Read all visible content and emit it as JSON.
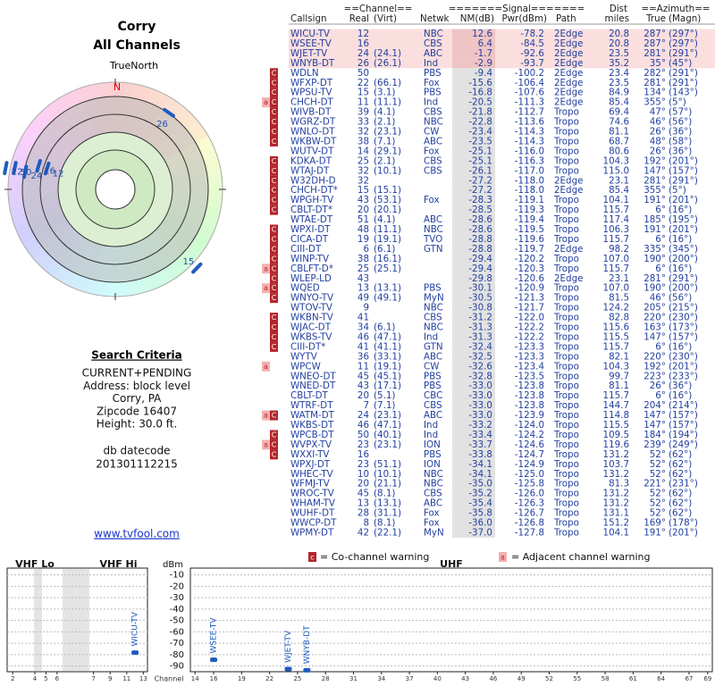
{
  "header": {
    "title": "Corry",
    "subtitle": "All Channels"
  },
  "polar": {
    "north_caption": "TrueNorth",
    "north_letter": "N",
    "marks": [
      {
        "label": "12",
        "azimuth": 287,
        "nm": 12.6
      },
      {
        "label": "16",
        "azimuth": 287,
        "nm": 6.4
      },
      {
        "label": "24",
        "azimuth": 281,
        "nm": -1.7
      },
      {
        "label": "26",
        "azimuth": 35,
        "nm": -2.9
      },
      {
        "label": "50",
        "azimuth": 282,
        "nm": -9.4
      },
      {
        "label": "15",
        "azimuth": 134,
        "nm": -16.8
      },
      {
        "label": "22",
        "azimuth": 281,
        "nm": -15.6
      }
    ]
  },
  "criteria": {
    "heading": "Search Criteria",
    "lines": [
      "CURRENT+PENDING",
      "Address: block level",
      "Corry, PA",
      "Zipcode 16407",
      "Height: 30.0 ft."
    ],
    "datecode": [
      "db datecode",
      "201301112215"
    ],
    "link": "www.tvfool.com"
  },
  "table": {
    "header_top": [
      "==Channel==",
      "=======Signal=======",
      "Dist",
      "==Azimuth=="
    ],
    "header": [
      "Callsign",
      "Real",
      "(Virt)",
      "Netwk",
      "NM(dB)",
      "Pwr(dBm)",
      "Path",
      "miles",
      "True",
      "(Magn)"
    ],
    "rows": [
      {
        "highlight": true,
        "callsign": "WICU-TV",
        "real": "12",
        "netwk": "NBC",
        "nm": "12.6",
        "pwr": "-78.2",
        "path": "2Edge",
        "dist": "20.8",
        "az_true": "287°",
        "az_magn": "(297°)"
      },
      {
        "highlight": true,
        "callsign": "WSEE-TV",
        "real": "16",
        "netwk": "CBS",
        "nm": "6.4",
        "pwr": "-84.5",
        "path": "2Edge",
        "dist": "20.8",
        "az_true": "287°",
        "az_magn": "(297°)"
      },
      {
        "highlight": true,
        "callsign": "WJET-TV",
        "real": "24",
        "virt": "(24.1)",
        "netwk": "ABC",
        "nm": "-1.7",
        "pwr": "-92.6",
        "path": "2Edge",
        "dist": "23.5",
        "az_true": "281°",
        "az_magn": "(291°)"
      },
      {
        "highlight": true,
        "callsign": "WNYB-DT",
        "real": "26",
        "virt": "(26.1)",
        "netwk": "Ind",
        "nm": "-2.9",
        "pwr": "-93.7",
        "path": "2Edge",
        "dist": "35.2",
        "az_true": "35°",
        "az_magn": "(45°)"
      },
      {
        "warn": [
          "C"
        ],
        "callsign": "WDLN",
        "real": "50",
        "netwk": "PBS",
        "nm": "-9.4",
        "pwr": "-100.2",
        "path": "2Edge",
        "dist": "23.4",
        "az_true": "282°",
        "az_magn": "(291°)"
      },
      {
        "warn": [
          "C"
        ],
        "callsign": "WFXP-DT",
        "real": "22",
        "virt": "(66.1)",
        "netwk": "Fox",
        "nm": "-15.6",
        "pwr": "-106.4",
        "path": "2Edge",
        "dist": "23.5",
        "az_true": "281°",
        "az_magn": "(291°)"
      },
      {
        "warn": [
          "C"
        ],
        "callsign": "WPSU-TV",
        "real": "15",
        "virt": "(3.1)",
        "netwk": "PBS",
        "nm": "-16.8",
        "pwr": "-107.6",
        "path": "2Edge",
        "dist": "84.9",
        "az_true": "134°",
        "az_magn": "(143°)"
      },
      {
        "warn": [
          "a",
          "C"
        ],
        "callsign": "CHCH-DT",
        "real": "11",
        "virt": "(11.1)",
        "netwk": "Ind",
        "nm": "-20.5",
        "pwr": "-111.3",
        "path": "2Edge",
        "dist": "85.4",
        "az_true": "355°",
        "az_magn": "(5°)"
      },
      {
        "warn": [
          "C"
        ],
        "callsign": "WIVB-DT",
        "real": "39",
        "virt": "(4.1)",
        "netwk": "CBS",
        "nm": "-21.8",
        "pwr": "-112.7",
        "path": "Tropo",
        "dist": "69.4",
        "az_true": "47°",
        "az_magn": "(57°)"
      },
      {
        "warn": [
          "C"
        ],
        "callsign": "WGRZ-DT",
        "real": "33",
        "virt": "(2.1)",
        "netwk": "NBC",
        "nm": "-22.8",
        "pwr": "-113.6",
        "path": "Tropo",
        "dist": "74.6",
        "az_true": "46°",
        "az_magn": "(56°)"
      },
      {
        "warn": [
          "C"
        ],
        "callsign": "WNLO-DT",
        "real": "32",
        "virt": "(23.1)",
        "netwk": "CW",
        "nm": "-23.4",
        "pwr": "-114.3",
        "path": "Tropo",
        "dist": "81.1",
        "az_true": "26°",
        "az_magn": "(36°)"
      },
      {
        "warn": [
          "C"
        ],
        "callsign": "WKBW-DT",
        "real": "38",
        "virt": "(7.1)",
        "netwk": "ABC",
        "nm": "-23.5",
        "pwr": "-114.3",
        "path": "Tropo",
        "dist": "68.7",
        "az_true": "48°",
        "az_magn": "(58°)"
      },
      {
        "callsign": "WUTV-DT",
        "real": "14",
        "virt": "(29.1)",
        "netwk": "Fox",
        "nm": "-25.1",
        "pwr": "-116.0",
        "path": "Tropo",
        "dist": "80.6",
        "az_true": "26°",
        "az_magn": "(36°)"
      },
      {
        "warn": [
          "C"
        ],
        "callsign": "KDKA-DT",
        "real": "25",
        "virt": "(2.1)",
        "netwk": "CBS",
        "nm": "-25.1",
        "pwr": "-116.3",
        "path": "Tropo",
        "dist": "104.3",
        "az_true": "192°",
        "az_magn": "(201°)"
      },
      {
        "warn": [
          "C"
        ],
        "callsign": "WTAJ-DT",
        "real": "32",
        "virt": "(10.1)",
        "netwk": "CBS",
        "nm": "-26.1",
        "pwr": "-117.0",
        "path": "Tropo",
        "dist": "115.0",
        "az_true": "147°",
        "az_magn": "(157°)"
      },
      {
        "warn": [
          "C"
        ],
        "callsign": "W32DH-D",
        "real": "32",
        "nm": "-27.2",
        "pwr": "-118.0",
        "path": "2Edge",
        "dist": "23.1",
        "az_true": "281°",
        "az_magn": "(291°)"
      },
      {
        "warn": [
          "C"
        ],
        "callsign": "CHCH-DT*",
        "real": "15",
        "virt": "(15.1)",
        "nm": "-27.2",
        "pwr": "-118.0",
        "path": "2Edge",
        "dist": "85.4",
        "az_true": "355°",
        "az_magn": "(5°)"
      },
      {
        "warn": [
          "C"
        ],
        "callsign": "WPGH-TV",
        "real": "43",
        "virt": "(53.1)",
        "netwk": "Fox",
        "nm": "-28.3",
        "pwr": "-119.1",
        "path": "Tropo",
        "dist": "104.1",
        "az_true": "191°",
        "az_magn": "(201°)"
      },
      {
        "warn": [
          "C"
        ],
        "callsign": "CBLT-DT*",
        "real": "20",
        "virt": "(20.1)",
        "nm": "-28.5",
        "pwr": "-119.3",
        "path": "Tropo",
        "dist": "115.7",
        "az_true": "6°",
        "az_magn": "(16°)"
      },
      {
        "callsign": "WTAE-DT",
        "real": "51",
        "virt": "(4.1)",
        "netwk": "ABC",
        "nm": "-28.6",
        "pwr": "-119.4",
        "path": "Tropo",
        "dist": "117.4",
        "az_true": "185°",
        "az_magn": "(195°)"
      },
      {
        "warn": [
          "C"
        ],
        "callsign": "WPXI-DT",
        "real": "48",
        "virt": "(11.1)",
        "netwk": "NBC",
        "nm": "-28.6",
        "pwr": "-119.5",
        "path": "Tropo",
        "dist": "106.3",
        "az_true": "191°",
        "az_magn": "(201°)"
      },
      {
        "warn": [
          "C"
        ],
        "callsign": "CICA-DT",
        "real": "19",
        "virt": "(19.1)",
        "netwk": "TVO",
        "nm": "-28.8",
        "pwr": "-119.6",
        "path": "Tropo",
        "dist": "115.7",
        "az_true": "6°",
        "az_magn": "(16°)"
      },
      {
        "warn": [
          "C"
        ],
        "callsign": "CIII-DT",
        "real": "6",
        "virt": "(6.1)",
        "netwk": "GTN",
        "nm": "-28.8",
        "pwr": "-119.7",
        "path": "2Edge",
        "dist": "98.2",
        "az_true": "335°",
        "az_magn": "(345°)"
      },
      {
        "warn": [
          "C"
        ],
        "callsign": "WINP-TV",
        "real": "38",
        "virt": "(16.1)",
        "nm": "-29.4",
        "pwr": "-120.2",
        "path": "Tropo",
        "dist": "107.0",
        "az_true": "190°",
        "az_magn": "(200°)"
      },
      {
        "warn": [
          "a",
          "C"
        ],
        "callsign": "CBLFT-D*",
        "real": "25",
        "virt": "(25.1)",
        "nm": "-29.4",
        "pwr": "-120.3",
        "path": "Tropo",
        "dist": "115.7",
        "az_true": "6°",
        "az_magn": "(16°)"
      },
      {
        "warn": [
          "C"
        ],
        "callsign": "WLEP-LD",
        "real": "43",
        "nm": "-29.8",
        "pwr": "-120.6",
        "path": "2Edge",
        "dist": "23.1",
        "az_true": "281°",
        "az_magn": "(291°)"
      },
      {
        "warn": [
          "a",
          "C"
        ],
        "callsign": "WQED",
        "real": "13",
        "virt": "(13.1)",
        "netwk": "PBS",
        "nm": "-30.1",
        "pwr": "-120.9",
        "path": "Tropo",
        "dist": "107.0",
        "az_true": "190°",
        "az_magn": "(200°)"
      },
      {
        "warn": [
          "C"
        ],
        "callsign": "WNYO-TV",
        "real": "49",
        "virt": "(49.1)",
        "netwk": "MyN",
        "nm": "-30.5",
        "pwr": "-121.3",
        "path": "Tropo",
        "dist": "81.5",
        "az_true": "46°",
        "az_magn": "(56°)"
      },
      {
        "callsign": "WTOV-TV",
        "real": "9",
        "netwk": "NBC",
        "nm": "-30.8",
        "pwr": "-121.7",
        "path": "Tropo",
        "dist": "124.2",
        "az_true": "205°",
        "az_magn": "(215°)"
      },
      {
        "warn": [
          "C"
        ],
        "callsign": "WKBN-TV",
        "real": "41",
        "netwk": "CBS",
        "nm": "-31.2",
        "pwr": "-122.0",
        "path": "Tropo",
        "dist": "82.8",
        "az_true": "220°",
        "az_magn": "(230°)"
      },
      {
        "warn": [
          "C"
        ],
        "callsign": "WJAC-DT",
        "real": "34",
        "virt": "(6.1)",
        "netwk": "NBC",
        "nm": "-31.3",
        "pwr": "-122.2",
        "path": "Tropo",
        "dist": "115.6",
        "az_true": "163°",
        "az_magn": "(173°)"
      },
      {
        "warn": [
          "C"
        ],
        "callsign": "WKBS-TV",
        "real": "46",
        "virt": "(47.1)",
        "netwk": "Ind",
        "nm": "-31.3",
        "pwr": "-122.2",
        "path": "Tropo",
        "dist": "115.5",
        "az_true": "147°",
        "az_magn": "(157°)"
      },
      {
        "warn": [
          "C"
        ],
        "callsign": "CIII-DT*",
        "real": "41",
        "virt": "(41.1)",
        "netwk": "GTN",
        "nm": "-32.4",
        "pwr": "-123.3",
        "path": "Tropo",
        "dist": "115.7",
        "az_true": "6°",
        "az_magn": "(16°)"
      },
      {
        "callsign": "WYTV",
        "real": "36",
        "virt": "(33.1)",
        "netwk": "ABC",
        "nm": "-32.5",
        "pwr": "-123.3",
        "path": "Tropo",
        "dist": "82.1",
        "az_true": "220°",
        "az_magn": "(230°)"
      },
      {
        "warn": [
          "a"
        ],
        "callsign": "WPCW",
        "real": "11",
        "virt": "(19.1)",
        "netwk": "CW",
        "nm": "-32.6",
        "pwr": "-123.4",
        "path": "Tropo",
        "dist": "104.3",
        "az_true": "192°",
        "az_magn": "(201°)"
      },
      {
        "callsign": "WNEO-DT",
        "real": "45",
        "virt": "(45.1)",
        "netwk": "PBS",
        "nm": "-32.8",
        "pwr": "-123.5",
        "path": "Tropo",
        "dist": "99.7",
        "az_true": "223°",
        "az_magn": "(233°)"
      },
      {
        "callsign": "WNED-DT",
        "real": "43",
        "virt": "(17.1)",
        "netwk": "PBS",
        "nm": "-33.0",
        "pwr": "-123.8",
        "path": "Tropo",
        "dist": "81.1",
        "az_true": "26°",
        "az_magn": "(36°)"
      },
      {
        "callsign": "CBLT-DT",
        "real": "20",
        "virt": "(5.1)",
        "netwk": "CBC",
        "nm": "-33.0",
        "pwr": "-123.8",
        "path": "Tropo",
        "dist": "115.7",
        "az_true": "6°",
        "az_magn": "(16°)"
      },
      {
        "callsign": "WTRF-DT",
        "real": "7",
        "virt": "(7.1)",
        "netwk": "CBS",
        "nm": "-33.0",
        "pwr": "-123.8",
        "path": "Tropo",
        "dist": "144.7",
        "az_true": "204°",
        "az_magn": "(214°)"
      },
      {
        "warn": [
          "a",
          "C"
        ],
        "callsign": "WATM-DT",
        "real": "24",
        "virt": "(23.1)",
        "netwk": "ABC",
        "nm": "-33.0",
        "pwr": "-123.9",
        "path": "Tropo",
        "dist": "114.8",
        "az_true": "147°",
        "az_magn": "(157°)"
      },
      {
        "callsign": "WKBS-DT",
        "real": "46",
        "virt": "(47.1)",
        "netwk": "Ind",
        "nm": "-33.2",
        "pwr": "-124.0",
        "path": "Tropo",
        "dist": "115.5",
        "az_true": "147°",
        "az_magn": "(157°)"
      },
      {
        "warn": [
          "C"
        ],
        "callsign": "WPCB-DT",
        "real": "50",
        "virt": "(40.1)",
        "netwk": "Ind",
        "nm": "-33.4",
        "pwr": "-124.2",
        "path": "Tropo",
        "dist": "109.5",
        "az_true": "184°",
        "az_magn": "(194°)"
      },
      {
        "warn": [
          "a",
          "C"
        ],
        "callsign": "WVPX-TV",
        "real": "23",
        "virt": "(23.1)",
        "netwk": "ION",
        "nm": "-33.7",
        "pwr": "-124.6",
        "path": "Tropo",
        "dist": "119.6",
        "az_true": "239°",
        "az_magn": "(249°)"
      },
      {
        "warn": [
          "C"
        ],
        "callsign": "WXXI-TV",
        "real": "16",
        "netwk": "PBS",
        "nm": "-33.8",
        "pwr": "-124.7",
        "path": "Tropo",
        "dist": "131.2",
        "az_true": "52°",
        "az_magn": "(62°)"
      },
      {
        "callsign": "WPXJ-DT",
        "real": "23",
        "virt": "(51.1)",
        "netwk": "ION",
        "nm": "-34.1",
        "pwr": "-124.9",
        "path": "Tropo",
        "dist": "103.7",
        "az_true": "52°",
        "az_magn": "(62°)"
      },
      {
        "callsign": "WHEC-TV",
        "real": "10",
        "virt": "(10.1)",
        "netwk": "NBC",
        "nm": "-34.1",
        "pwr": "-125.0",
        "path": "Tropo",
        "dist": "131.2",
        "az_true": "52°",
        "az_magn": "(62°)"
      },
      {
        "callsign": "WFMJ-TV",
        "real": "20",
        "virt": "(21.1)",
        "netwk": "NBC",
        "nm": "-35.0",
        "pwr": "-125.8",
        "path": "Tropo",
        "dist": "81.3",
        "az_true": "221°",
        "az_magn": "(231°)"
      },
      {
        "callsign": "WROC-TV",
        "real": "45",
        "virt": "(8.1)",
        "netwk": "CBS",
        "nm": "-35.2",
        "pwr": "-126.0",
        "path": "Tropo",
        "dist": "131.2",
        "az_true": "52°",
        "az_magn": "(62°)"
      },
      {
        "callsign": "WHAM-TV",
        "real": "13",
        "virt": "(13.1)",
        "netwk": "ABC",
        "nm": "-35.4",
        "pwr": "-126.3",
        "path": "Tropo",
        "dist": "131.2",
        "az_true": "52°",
        "az_magn": "(62°)"
      },
      {
        "callsign": "WUHF-DT",
        "real": "28",
        "virt": "(31.1)",
        "netwk": "Fox",
        "nm": "-35.8",
        "pwr": "-126.7",
        "path": "Tropo",
        "dist": "131.1",
        "az_true": "52°",
        "az_magn": "(62°)"
      },
      {
        "callsign": "WWCP-DT",
        "real": "8",
        "virt": "(8.1)",
        "netwk": "Fox",
        "nm": "-36.0",
        "pwr": "-126.8",
        "path": "Tropo",
        "dist": "151.2",
        "az_true": "169°",
        "az_magn": "(178°)"
      },
      {
        "callsign": "WPMY-DT",
        "real": "42",
        "virt": "(22.1)",
        "netwk": "MyN",
        "nm": "-37.0",
        "pwr": "-127.8",
        "path": "Tropo",
        "dist": "104.1",
        "az_true": "191°",
        "az_magn": "(201°)"
      }
    ]
  },
  "legend": {
    "co_box": "c",
    "co_text": "= Co-channel warning",
    "adj_box": "a",
    "adj_text": "= Adjacent channel warning"
  },
  "spectrum": {
    "ylabel": "dBm",
    "xlabel": "Channel",
    "ylim": [
      -95,
      -4
    ],
    "yticks": [
      -10,
      -20,
      -30,
      -40,
      -50,
      -60,
      -70,
      -80,
      -90
    ],
    "grid": true,
    "panels": [
      {
        "title": "VHF Lo",
        "xlim": [
          1.5,
          6.5
        ],
        "xticks": [
          2,
          4,
          5,
          6
        ]
      },
      {
        "title": "VHF Hi",
        "xlim": [
          6.5,
          13.5
        ],
        "xticks": [
          7,
          9,
          11,
          13
        ]
      },
      {
        "title": "UHF",
        "xlim": [
          13.5,
          69.5
        ],
        "xticks": [
          14,
          16,
          19,
          22,
          25,
          28,
          31,
          34,
          37,
          40,
          43,
          46,
          49,
          52,
          55,
          58,
          61,
          64,
          67,
          69
        ]
      }
    ],
    "bars": [
      {
        "label": "WICU-TV",
        "channel": 12,
        "value": -78.2
      },
      {
        "label": "WSEE-TV",
        "channel": 16,
        "value": -84.5
      },
      {
        "label": "WJET-TV",
        "channel": 24,
        "value": -92.6
      },
      {
        "label": "WNYB-DT",
        "channel": 26,
        "value": -93.7
      }
    ],
    "color": "#1f5bbf"
  }
}
